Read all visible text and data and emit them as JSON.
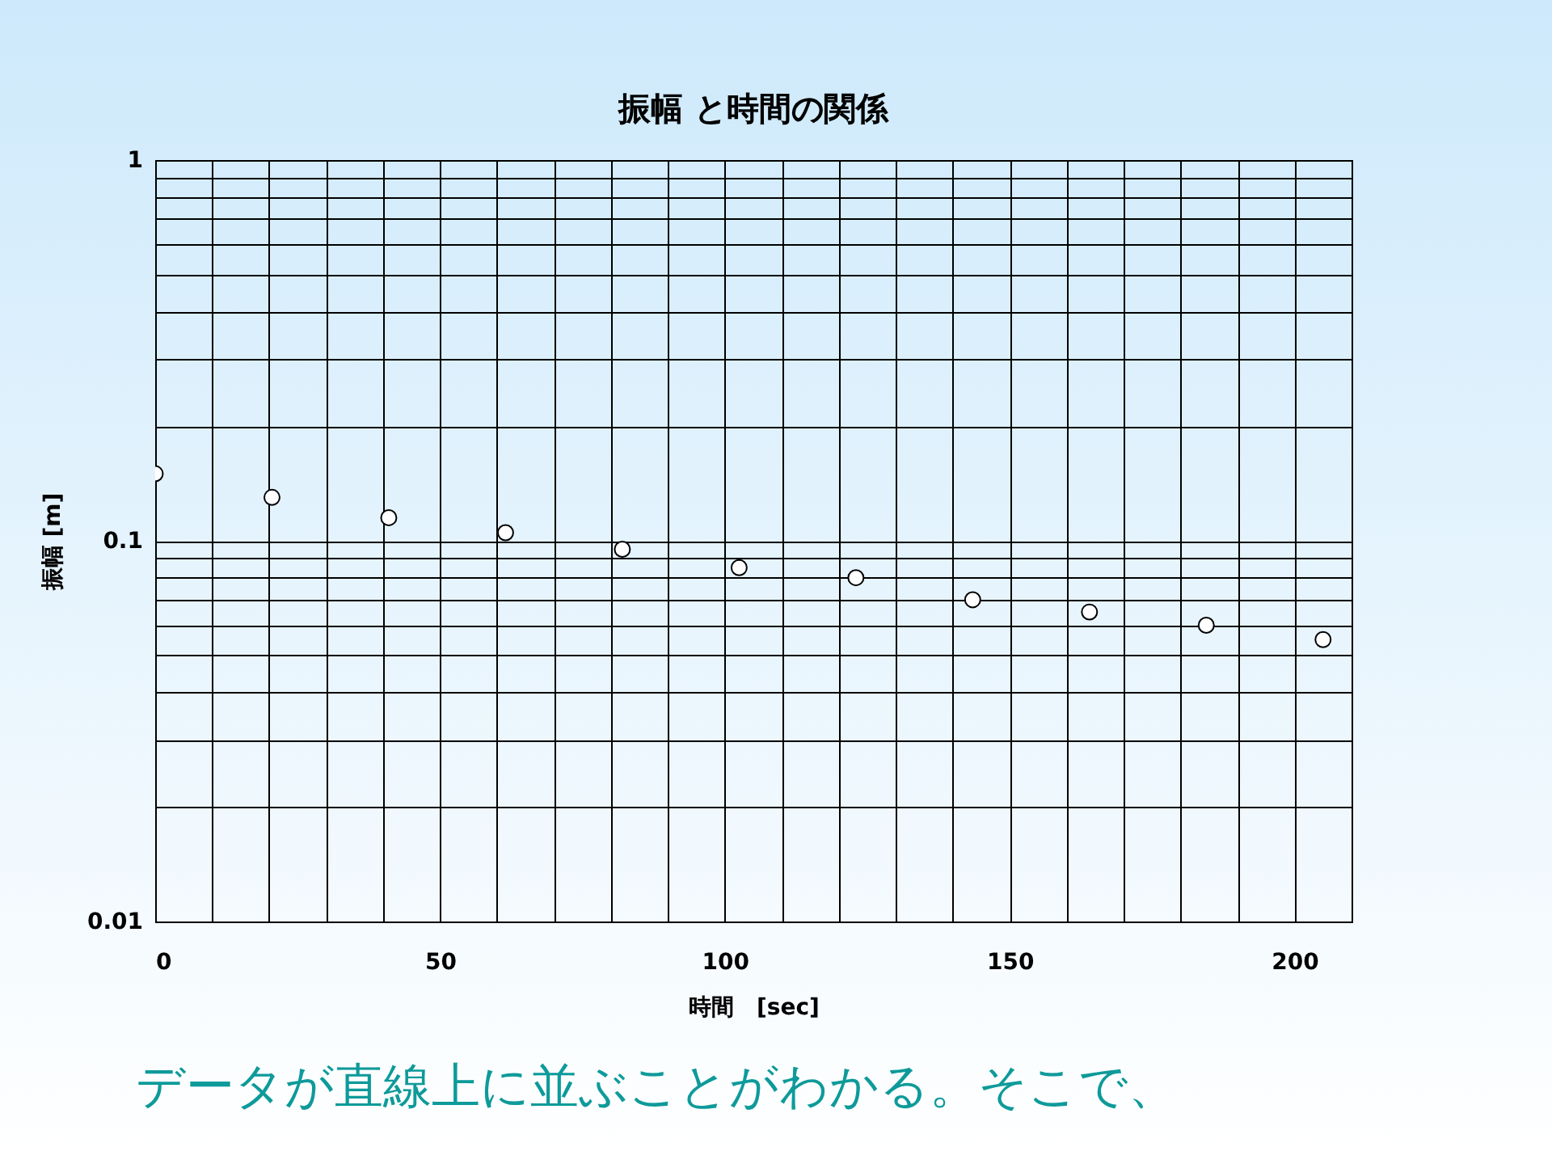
{
  "chart_data": {
    "type": "scatter",
    "title": "振幅 と時間の関係",
    "xlabel": "時間　[sec]",
    "ylabel": "振幅 [m]",
    "annotations": [
      "データが直線上に並ぶことがわかる。そこで、"
    ],
    "x": [
      0,
      20.5,
      41,
      61.5,
      82,
      102.5,
      123,
      143.5,
      164,
      184.5,
      205
    ],
    "values": [
      0.15,
      0.13,
      0.115,
      0.105,
      0.095,
      0.085,
      0.08,
      0.07,
      0.065,
      0.06,
      0.055
    ],
    "color": "#ffffff",
    "marker": "circle",
    "grid": true,
    "log": "y",
    "xlim": [
      0,
      210
    ],
    "ylim": [
      0.01,
      1
    ],
    "xticks": [
      0,
      {
        "value": 10,
        "label": null
      },
      {
        "value": 20,
        "label": null
      },
      {
        "value": 30,
        "label": null
      },
      {
        "value": 40,
        "label": null
      },
      50,
      {
        "value": 60,
        "label": null
      },
      {
        "value": 70,
        "label": null
      },
      {
        "value": 80,
        "label": null
      },
      {
        "value": 90,
        "label": null
      },
      100,
      {
        "value": 110,
        "label": null
      },
      {
        "value": 120,
        "label": null
      },
      {
        "value": 130,
        "label": null
      },
      {
        "value": 140,
        "label": null
      },
      150,
      {
        "value": 160,
        "label": null
      },
      {
        "value": 170,
        "label": null
      },
      {
        "value": 180,
        "label": null
      },
      {
        "value": 190,
        "label": null
      },
      200
    ],
    "yticks": [
      0.01,
      {
        "value": 0.02,
        "label": null
      },
      {
        "value": 0.03,
        "label": null
      },
      {
        "value": 0.04,
        "label": null
      },
      {
        "value": 0.05,
        "label": null
      },
      {
        "value": 0.06,
        "label": null
      },
      {
        "value": 0.07,
        "label": null
      },
      {
        "value": 0.08,
        "label": null
      },
      {
        "value": 0.09,
        "label": null
      },
      0.1,
      {
        "value": 0.2,
        "label": null
      },
      {
        "value": 0.3,
        "label": null
      },
      {
        "value": 0.4,
        "label": null
      },
      {
        "value": 0.5,
        "label": null
      },
      {
        "value": 0.6,
        "label": null
      },
      {
        "value": 0.7,
        "label": null
      },
      {
        "value": 0.8,
        "label": null
      },
      {
        "value": 0.9,
        "label": null
      },
      1
    ]
  }
}
